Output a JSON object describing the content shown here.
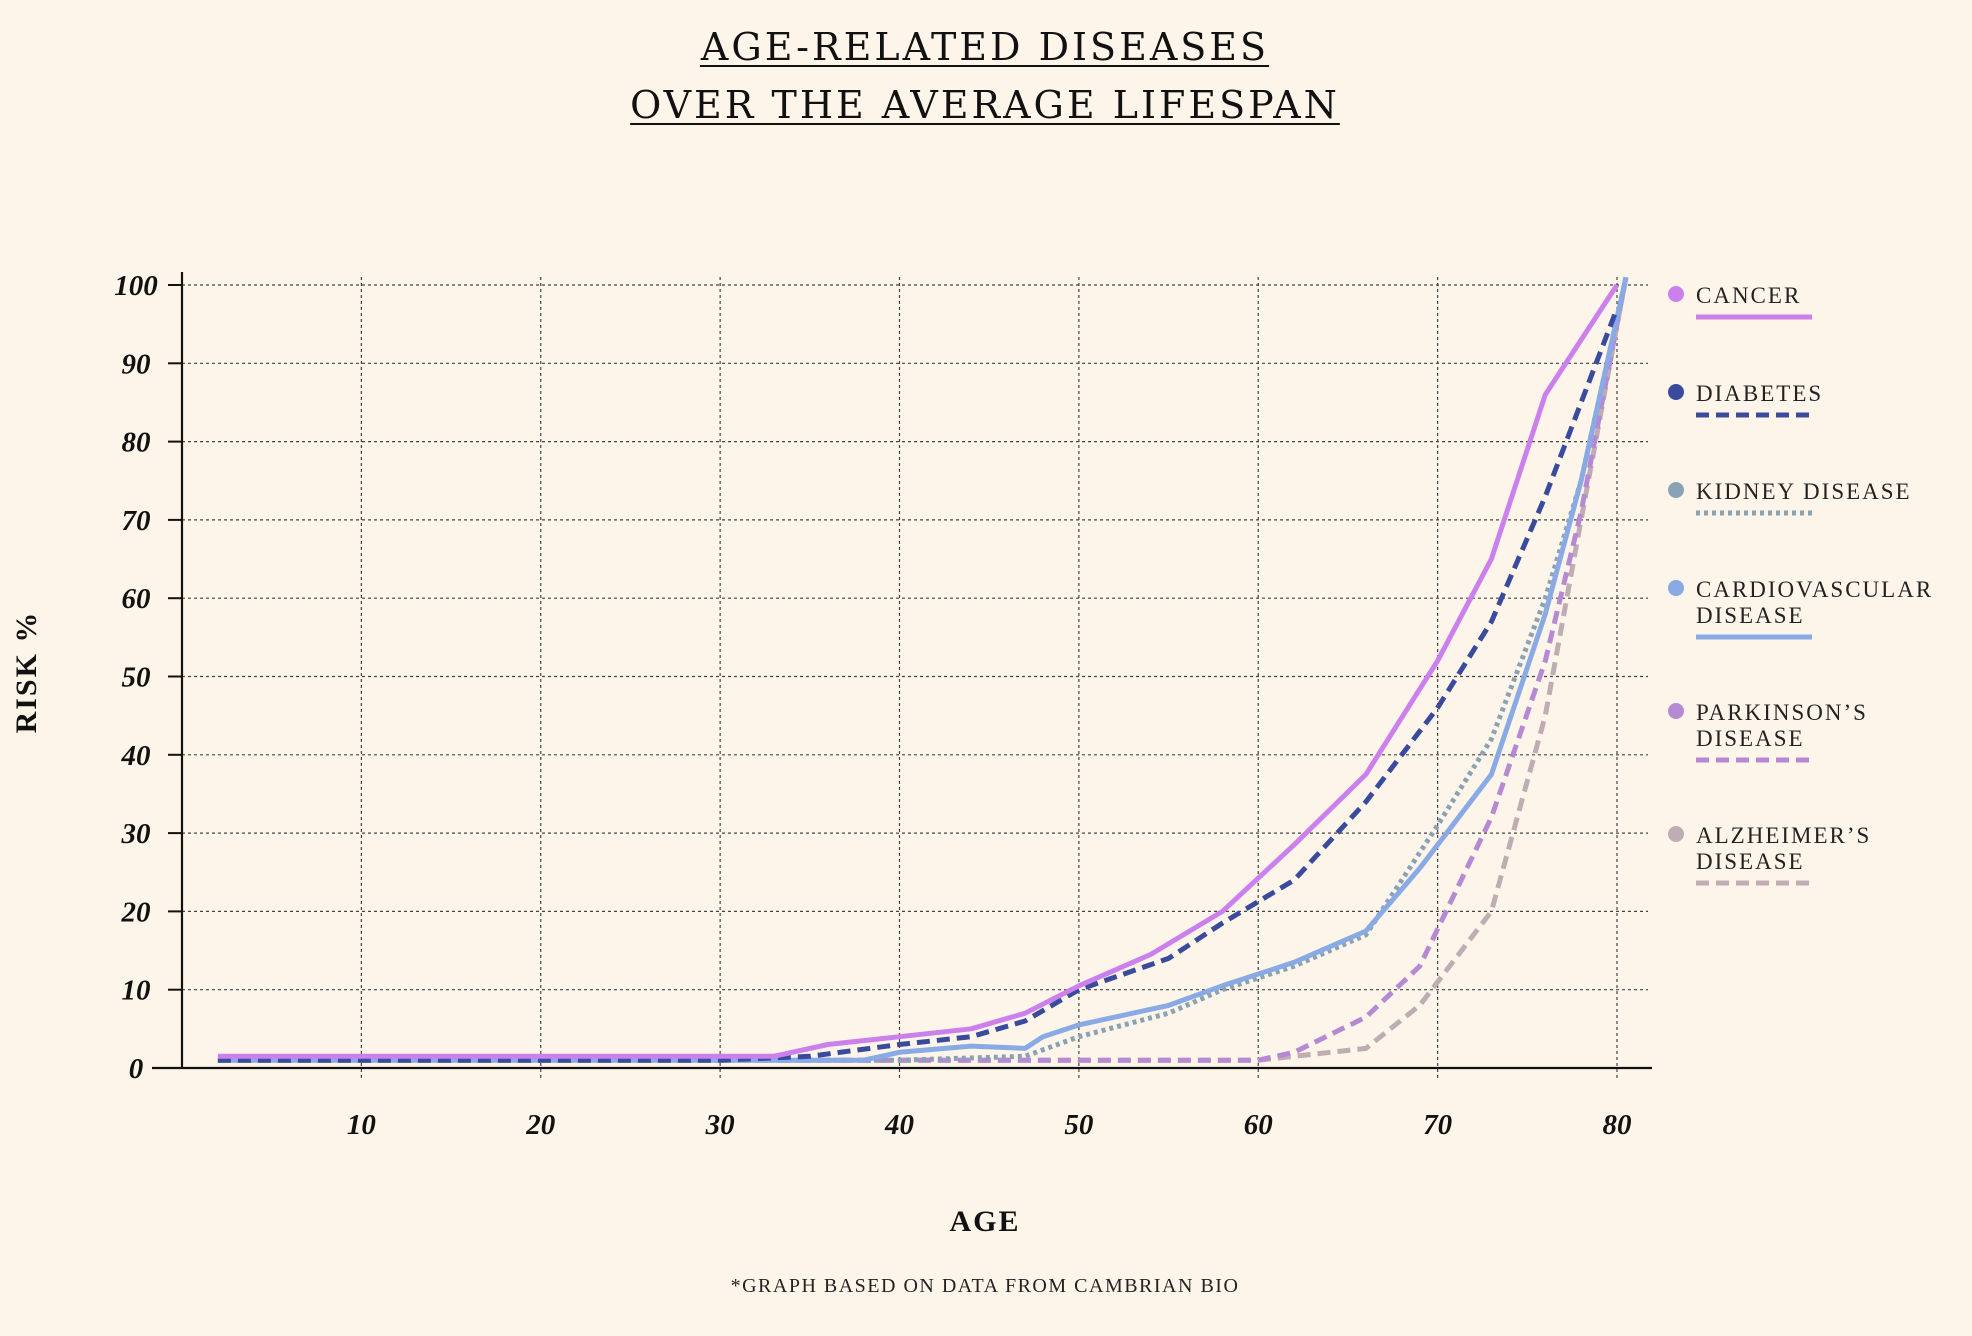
{
  "chart_data": {
    "type": "line",
    "title_lines": [
      "AGE-RELATED DISEASES",
      "OVER THE AVERAGE LIFESPAN"
    ],
    "xlabel": "AGE",
    "ylabel": "RISK %",
    "footnote": "*GRAPH BASED ON DATA FROM CAMBRIAN BIO",
    "xlim": [
      0,
      82
    ],
    "ylim": [
      0,
      100
    ],
    "x_ticks": [
      10,
      20,
      30,
      40,
      50,
      60,
      70,
      80
    ],
    "y_ticks": [
      0,
      10,
      20,
      30,
      40,
      50,
      60,
      70,
      80,
      90,
      100
    ],
    "grid": true,
    "legend_position": "right",
    "series": [
      {
        "name": "CANCER",
        "label_lines": [
          "CANCER"
        ],
        "color": "#cc80ec",
        "dash": "solid",
        "x": [
          2,
          10,
          20,
          30,
          33,
          36,
          40,
          44,
          47,
          50,
          54,
          58,
          62,
          66,
          70,
          73,
          76,
          80
        ],
        "y": [
          1.5,
          1.5,
          1.5,
          1.5,
          1.5,
          3,
          4,
          5,
          7,
          10.5,
          14.5,
          20,
          28.5,
          37.5,
          52,
          65,
          86,
          100
        ]
      },
      {
        "name": "DIABETES",
        "label_lines": [
          "DIABETES"
        ],
        "color": "#3a4a9c",
        "dash": "dash",
        "x": [
          2,
          10,
          20,
          30,
          35,
          40,
          44,
          47,
          50,
          55,
          58,
          62,
          66,
          70,
          73,
          76,
          80
        ],
        "y": [
          1,
          1,
          1,
          1,
          1.5,
          3,
          4,
          6,
          10,
          14,
          18.5,
          24,
          34,
          46,
          57,
          73,
          97
        ]
      },
      {
        "name": "KIDNEY DISEASE",
        "label_lines": [
          "KIDNEY DISEASE"
        ],
        "color": "#8aa3b4",
        "dash": "dot",
        "x": [
          2,
          10,
          20,
          30,
          40,
          47,
          50,
          55,
          58,
          62,
          66,
          70,
          73,
          76,
          78,
          80.5
        ],
        "y": [
          1,
          1,
          1,
          1,
          1,
          1.5,
          4,
          7,
          10,
          13,
          17,
          31,
          42,
          60,
          75,
          101
        ]
      },
      {
        "name": "CARDIOVASCULAR DISEASE",
        "label_lines": [
          "CARDIOVASCULAR",
          "DISEASE"
        ],
        "color": "#89aae4",
        "dash": "solid",
        "x": [
          2,
          10,
          20,
          30,
          38,
          40,
          44,
          47,
          48,
          50,
          55,
          58,
          62,
          66,
          69,
          73,
          76,
          78,
          80.5
        ],
        "y": [
          1,
          1,
          1,
          1,
          1,
          2,
          2.8,
          2.5,
          4,
          5.5,
          8,
          10.5,
          13.5,
          17.5,
          25.5,
          37.5,
          58,
          75,
          101
        ]
      },
      {
        "name": "PARKINSON’S DISEASE",
        "label_lines": [
          "PARKINSON’S",
          "DISEASE"
        ],
        "color": "#b68ad3",
        "dash": "dash",
        "x": [
          2,
          10,
          20,
          30,
          40,
          50,
          55,
          60,
          62,
          66,
          69,
          73,
          76,
          78,
          80.5
        ],
        "y": [
          1,
          1,
          1,
          1,
          1,
          1,
          1,
          1,
          2,
          6.5,
          13,
          32,
          52,
          71,
          101
        ]
      },
      {
        "name": "ALZHEIMER’S DISEASE",
        "label_lines": [
          "ALZHEIMER’S",
          "DISEASE"
        ],
        "color": "#bfadb3",
        "dash": "dash",
        "x": [
          2,
          10,
          20,
          30,
          40,
          50,
          55,
          60,
          62,
          66,
          69,
          73,
          76,
          78,
          80.5
        ],
        "y": [
          1,
          1,
          1,
          1,
          1,
          1,
          1,
          1,
          1.5,
          2.5,
          8,
          20,
          45,
          70,
          101
        ]
      }
    ]
  }
}
